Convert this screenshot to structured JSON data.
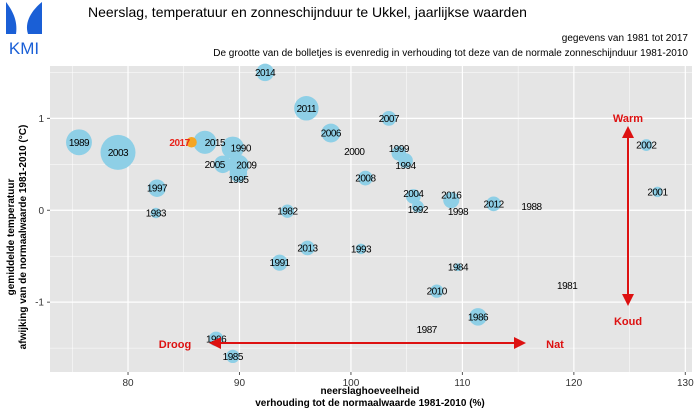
{
  "header": {
    "logo_text": "KMI",
    "title": "Neerslag, temperatuur en zonneschijnduur te Ukkel, jaarlijkse waarden",
    "subtitle1": "gegevens van 1981 tot 2017",
    "subtitle2": "De grootte van de bolletjes is evenredig in verhouding tot deze van de normale zonneschijnduur 1981-2010"
  },
  "colors": {
    "bubble": "#8ecfe6",
    "highlight": "#f5a623",
    "highlight_text": "#e8241c",
    "annotation": "#dd1111",
    "panel": "#e5e5e5",
    "grid": "#ffffff"
  },
  "chart_data": {
    "type": "scatter",
    "xlabel": "neerslaghoeveelheid",
    "xlabel2": "verhouding tot de normaalwaarde 1981-2010 (%)",
    "ylabel": "gemiddelde temperatuur",
    "ylabel2": "afwijking van de normaalwaarde 1981-2010 (°C)",
    "xlim": [
      73,
      130.6
    ],
    "ylim": [
      -1.76,
      1.57
    ],
    "xticks": [
      80,
      90,
      100,
      110,
      120,
      130
    ],
    "yticks": [
      -1,
      0,
      1
    ],
    "grid": true,
    "annotations": {
      "warm": "Warm",
      "koud": "Koud",
      "droog": "Droog",
      "nat": "Nat"
    },
    "points": [
      {
        "year": "2014",
        "x": 92.3,
        "y": 1.5,
        "sun": 110
      },
      {
        "year": "2011",
        "x": 96.0,
        "y": 1.11,
        "sun": 120
      },
      {
        "year": "2007",
        "x": 103.4,
        "y": 1.0,
        "sun": 106
      },
      {
        "year": "2006",
        "x": 98.2,
        "y": 0.84,
        "sun": 112
      },
      {
        "year": "2000",
        "x": 100.3,
        "y": 0.64,
        "sun": 85
      },
      {
        "year": "1989",
        "x": 75.6,
        "y": 0.74,
        "sun": 122
      },
      {
        "year": "2003",
        "x": 79.1,
        "y": 0.63,
        "sun": 135
      },
      {
        "year": "2015",
        "x": 86.9,
        "y": 0.74,
        "sun": 118
      },
      {
        "year": "1990",
        "x": 89.4,
        "y": 0.68,
        "sun": 117
      },
      {
        "year": "2005",
        "x": 88.5,
        "y": 0.5,
        "sun": 110
      },
      {
        "year": "2009",
        "x": 89.9,
        "y": 0.49,
        "sun": 115
      },
      {
        "year": "1995",
        "x": 89.9,
        "y": 0.4,
        "sun": 110
      },
      {
        "year": "1997",
        "x": 82.6,
        "y": 0.24,
        "sun": 110
      },
      {
        "year": "1983",
        "x": 82.5,
        "y": -0.03,
        "sun": 100
      },
      {
        "year": "1982",
        "x": 94.3,
        "y": -0.01,
        "sun": 104
      },
      {
        "year": "1999",
        "x": 104.3,
        "y": 0.62,
        "sun": 106
      },
      {
        "year": "1994",
        "x": 104.9,
        "y": 0.54,
        "sun": 106
      },
      {
        "year": "2008",
        "x": 101.3,
        "y": 0.35,
        "sun": 106
      },
      {
        "year": "2004",
        "x": 105.6,
        "y": 0.15,
        "sun": 106
      },
      {
        "year": "1992",
        "x": 106.0,
        "y": 0.04,
        "sun": 102
      },
      {
        "year": "2016",
        "x": 109.0,
        "y": 0.11,
        "sun": 108
      },
      {
        "year": "1998",
        "x": 109.6,
        "y": 0.04,
        "sun": 85
      },
      {
        "year": "2012",
        "x": 112.8,
        "y": 0.07,
        "sun": 106
      },
      {
        "year": "1988",
        "x": 116.2,
        "y": 0.04,
        "sun": 85
      },
      {
        "year": "2002",
        "x": 126.5,
        "y": 0.71,
        "sun": 102
      },
      {
        "year": "2001",
        "x": 127.5,
        "y": 0.2,
        "sun": 100
      },
      {
        "year": "2013",
        "x": 96.1,
        "y": -0.41,
        "sun": 106
      },
      {
        "year": "1993",
        "x": 100.9,
        "y": -0.42,
        "sun": 100
      },
      {
        "year": "1991",
        "x": 93.6,
        "y": -0.57,
        "sun": 108
      },
      {
        "year": "1984",
        "x": 109.6,
        "y": -0.62,
        "sun": 96
      },
      {
        "year": "2010",
        "x": 107.7,
        "y": -0.88,
        "sun": 104
      },
      {
        "year": "1981",
        "x": 119.4,
        "y": -0.82,
        "sun": 85
      },
      {
        "year": "1986",
        "x": 111.4,
        "y": -1.16,
        "sun": 110
      },
      {
        "year": "1987",
        "x": 106.8,
        "y": -1.3,
        "sun": 85
      },
      {
        "year": "1996",
        "x": 87.9,
        "y": -1.4,
        "sun": 106
      },
      {
        "year": "1985",
        "x": 89.4,
        "y": -1.59,
        "sun": 104
      },
      {
        "year": "2017",
        "x": 85.7,
        "y": 0.74,
        "sun": 100,
        "highlight": true
      }
    ]
  }
}
